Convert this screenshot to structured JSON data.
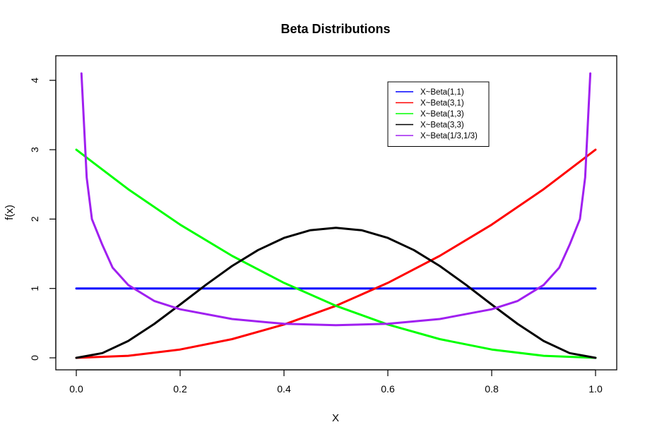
{
  "chart_data": {
    "type": "line",
    "title": "Beta Distributions",
    "xlabel": "X",
    "ylabel": "f(x)",
    "xlim": [
      0,
      1
    ],
    "ylim": [
      0,
      4.1
    ],
    "xticks": [
      "0.0",
      "0.2",
      "0.4",
      "0.6",
      "0.8",
      "1.0"
    ],
    "yticks": [
      "0",
      "1",
      "2",
      "3",
      "4"
    ],
    "grid": false,
    "legend_position": "top-right",
    "series": [
      {
        "name": "X~Beta(1,1)",
        "color": "#0000ff",
        "x": [
          0,
          1
        ],
        "y": [
          1,
          1
        ]
      },
      {
        "name": "X~Beta(3,1)",
        "color": "#ff0000",
        "x": [
          0,
          0.1,
          0.2,
          0.3,
          0.4,
          0.5,
          0.6,
          0.7,
          0.8,
          0.9,
          1.0
        ],
        "y": [
          0,
          0.03,
          0.12,
          0.27,
          0.48,
          0.75,
          1.08,
          1.47,
          1.92,
          2.43,
          3.0
        ]
      },
      {
        "name": "X~Beta(1,3)",
        "color": "#00ff00",
        "x": [
          0,
          0.1,
          0.2,
          0.3,
          0.4,
          0.5,
          0.6,
          0.7,
          0.8,
          0.9,
          1.0
        ],
        "y": [
          3.0,
          2.43,
          1.92,
          1.47,
          1.08,
          0.75,
          0.48,
          0.27,
          0.12,
          0.03,
          0
        ]
      },
      {
        "name": "X~Beta(3,3)",
        "color": "#000000",
        "x": [
          0,
          0.05,
          0.1,
          0.15,
          0.2,
          0.25,
          0.3,
          0.35,
          0.4,
          0.45,
          0.5,
          0.55,
          0.6,
          0.65,
          0.7,
          0.75,
          0.8,
          0.85,
          0.9,
          0.95,
          1.0
        ],
        "y": [
          0,
          0.068,
          0.243,
          0.488,
          0.768,
          1.055,
          1.323,
          1.553,
          1.728,
          1.838,
          1.875,
          1.838,
          1.728,
          1.553,
          1.323,
          1.055,
          0.768,
          0.488,
          0.243,
          0.068,
          0
        ]
      },
      {
        "name": "X~Beta(1/3,1/3)",
        "color": "#a020f0",
        "x": [
          0.01,
          0.02,
          0.03,
          0.05,
          0.07,
          0.1,
          0.15,
          0.2,
          0.3,
          0.4,
          0.5,
          0.6,
          0.7,
          0.8,
          0.85,
          0.9,
          0.93,
          0.95,
          0.97,
          0.98,
          0.99
        ],
        "y": [
          4.1,
          2.6,
          2.0,
          1.63,
          1.3,
          1.05,
          0.82,
          0.7,
          0.56,
          0.49,
          0.47,
          0.49,
          0.56,
          0.7,
          0.82,
          1.05,
          1.3,
          1.63,
          2.0,
          2.6,
          4.1
        ]
      }
    ]
  }
}
